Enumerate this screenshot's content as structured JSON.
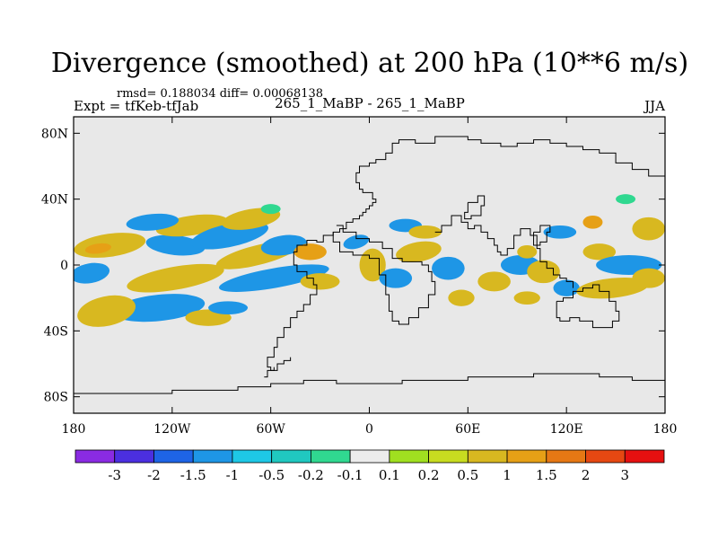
{
  "title": "Divergence (smoothed) at 200 hPa (10**6 m/s)",
  "stats": "rmsd= 0.188034  diff= 0.00068138",
  "experiment": "Expt = tfKeb-tfJab",
  "case_label": "265_1_MaBP - 265_1_MaBP",
  "season": "JJA",
  "map": {
    "projection": "cylindrical-equidistant",
    "lon_range": [
      -180,
      180
    ],
    "lat_range": [
      -90,
      90
    ],
    "x_ticks": [
      {
        "lon": -180,
        "label": "180"
      },
      {
        "lon": -120,
        "label": "120W"
      },
      {
        "lon": -60,
        "label": "60W"
      },
      {
        "lon": 0,
        "label": "0"
      },
      {
        "lon": 60,
        "label": "60E"
      },
      {
        "lon": 120,
        "label": "120E"
      },
      {
        "lon": 180,
        "label": "180"
      }
    ],
    "y_ticks": [
      {
        "lat": 80,
        "label": "80N"
      },
      {
        "lat": 40,
        "label": "40N"
      },
      {
        "lat": 0,
        "label": "0"
      },
      {
        "lat": -40,
        "label": "40S"
      },
      {
        "lat": -80,
        "label": "80S"
      }
    ],
    "background_color": "#e8e8e8"
  },
  "colorbar": {
    "colors": [
      "#8a2be2",
      "#4b2fe0",
      "#1e64e6",
      "#1e96e6",
      "#1ec8e6",
      "#20c8c0",
      "#30d890",
      "#ececec",
      "#a0e020",
      "#c8dc20",
      "#d8b820",
      "#e6a016",
      "#e67814",
      "#e64812",
      "#e61010"
    ],
    "labels": [
      "-3",
      "-2",
      "-1.5",
      "-1",
      "-0.5",
      "-0.2",
      "-0.1",
      "0.1",
      "0.2",
      "0.5",
      "1",
      "1.5",
      "2",
      "3"
    ]
  },
  "features": [
    {
      "lon": -158,
      "lat": 12,
      "rx": 22,
      "ry": 7,
      "level": 10,
      "angle": -8
    },
    {
      "lon": -165,
      "lat": 10,
      "rx": 8,
      "ry": 3,
      "level": 11,
      "angle": -8
    },
    {
      "lon": -118,
      "lat": 12,
      "rx": 18,
      "ry": 6,
      "level": 3,
      "angle": 6
    },
    {
      "lon": -108,
      "lat": 24,
      "rx": 22,
      "ry": 6,
      "level": 10,
      "angle": -8
    },
    {
      "lon": -132,
      "lat": 26,
      "rx": 16,
      "ry": 5,
      "level": 3,
      "angle": -5
    },
    {
      "lon": -85,
      "lat": 18,
      "rx": 24,
      "ry": 7,
      "level": 3,
      "angle": -12
    },
    {
      "lon": -72,
      "lat": 28,
      "rx": 18,
      "ry": 6,
      "level": 10,
      "angle": -10
    },
    {
      "lon": -68,
      "lat": 6,
      "rx": 26,
      "ry": 6,
      "level": 10,
      "angle": -14
    },
    {
      "lon": -52,
      "lat": 12,
      "rx": 14,
      "ry": 6,
      "level": 3,
      "angle": -8
    },
    {
      "lon": -58,
      "lat": -8,
      "rx": 34,
      "ry": 6,
      "level": 3,
      "angle": -10
    },
    {
      "lon": -118,
      "lat": -8,
      "rx": 30,
      "ry": 7,
      "level": 10,
      "angle": -10
    },
    {
      "lon": -128,
      "lat": -26,
      "rx": 28,
      "ry": 8,
      "level": 3,
      "angle": -6
    },
    {
      "lon": -160,
      "lat": -28,
      "rx": 18,
      "ry": 9,
      "level": 10,
      "angle": -12
    },
    {
      "lon": -170,
      "lat": -5,
      "rx": 12,
      "ry": 6,
      "level": 3,
      "angle": -10
    },
    {
      "lon": -98,
      "lat": -32,
      "rx": 14,
      "ry": 5,
      "level": 10,
      "angle": 0
    },
    {
      "lon": -86,
      "lat": -26,
      "rx": 12,
      "ry": 4,
      "level": 3,
      "angle": 0
    },
    {
      "lon": -36,
      "lat": 8,
      "rx": 10,
      "ry": 5,
      "level": 11,
      "angle": 0
    },
    {
      "lon": -30,
      "lat": -10,
      "rx": 12,
      "ry": 5,
      "level": 10,
      "angle": 0
    },
    {
      "lon": -8,
      "lat": 14,
      "rx": 8,
      "ry": 4,
      "level": 3,
      "angle": -15
    },
    {
      "lon": 2,
      "lat": 0,
      "rx": 8,
      "ry": 10,
      "level": 10,
      "angle": 0
    },
    {
      "lon": 16,
      "lat": -8,
      "rx": 10,
      "ry": 6,
      "level": 3,
      "angle": 0
    },
    {
      "lon": 22,
      "lat": 24,
      "rx": 10,
      "ry": 4,
      "level": 3,
      "angle": 0
    },
    {
      "lon": 30,
      "lat": 8,
      "rx": 14,
      "ry": 6,
      "level": 10,
      "angle": -10
    },
    {
      "lon": 34,
      "lat": 20,
      "rx": 10,
      "ry": 4,
      "level": 10,
      "angle": 0
    },
    {
      "lon": 48,
      "lat": -2,
      "rx": 10,
      "ry": 7,
      "level": 3,
      "angle": 0
    },
    {
      "lon": 56,
      "lat": -20,
      "rx": 8,
      "ry": 5,
      "level": 10,
      "angle": 0
    },
    {
      "lon": 76,
      "lat": -10,
      "rx": 10,
      "ry": 6,
      "level": 10,
      "angle": 0
    },
    {
      "lon": 92,
      "lat": 0,
      "rx": 12,
      "ry": 6,
      "level": 3,
      "angle": 0
    },
    {
      "lon": 106,
      "lat": -4,
      "rx": 10,
      "ry": 7,
      "level": 10,
      "angle": 0
    },
    {
      "lon": 96,
      "lat": -20,
      "rx": 8,
      "ry": 4,
      "level": 10,
      "angle": 0
    },
    {
      "lon": 120,
      "lat": -14,
      "rx": 8,
      "ry": 5,
      "level": 3,
      "angle": 0
    },
    {
      "lon": 140,
      "lat": 8,
      "rx": 10,
      "ry": 5,
      "level": 10,
      "angle": 0
    },
    {
      "lon": 158,
      "lat": 0,
      "rx": 20,
      "ry": 6,
      "level": 3,
      "angle": 0
    },
    {
      "lon": 148,
      "lat": -14,
      "rx": 22,
      "ry": 6,
      "level": 10,
      "angle": -6
    },
    {
      "lon": 170,
      "lat": 22,
      "rx": 10,
      "ry": 7,
      "level": 10,
      "angle": 0
    },
    {
      "lon": 136,
      "lat": 26,
      "rx": 6,
      "ry": 4,
      "level": 11,
      "angle": 0
    },
    {
      "lon": 116,
      "lat": 20,
      "rx": 10,
      "ry": 4,
      "level": 3,
      "angle": 0
    },
    {
      "lon": 170,
      "lat": -8,
      "rx": 10,
      "ry": 6,
      "level": 10,
      "angle": 0
    },
    {
      "lon": 156,
      "lat": 40,
      "rx": 6,
      "ry": 3,
      "level": 6,
      "angle": 0
    },
    {
      "lon": -60,
      "lat": 34,
      "rx": 6,
      "ry": 3,
      "level": 6,
      "angle": 0
    },
    {
      "lon": 96,
      "lat": 8,
      "rx": 6,
      "ry": 4,
      "level": 10,
      "angle": 0
    }
  ],
  "land_outlines": [
    [
      [
        -40,
        12
      ],
      [
        -38,
        15
      ],
      [
        -32,
        14
      ],
      [
        -28,
        18
      ],
      [
        -22,
        20
      ],
      [
        -18,
        22
      ],
      [
        -14,
        26
      ],
      [
        -10,
        28
      ],
      [
        -6,
        30
      ],
      [
        -4,
        32
      ],
      [
        -2,
        34
      ],
      [
        0,
        36
      ],
      [
        2,
        38
      ],
      [
        4,
        40
      ],
      [
        2,
        44
      ],
      [
        -4,
        46
      ],
      [
        -6,
        50
      ],
      [
        -8,
        56
      ],
      [
        -6,
        60
      ],
      [
        0,
        62
      ],
      [
        4,
        64
      ],
      [
        10,
        68
      ],
      [
        14,
        74
      ],
      [
        18,
        76
      ],
      [
        28,
        74
      ],
      [
        40,
        78
      ],
      [
        54,
        78
      ],
      [
        60,
        76
      ],
      [
        68,
        74
      ],
      [
        80,
        72
      ],
      [
        90,
        74
      ],
      [
        100,
        76
      ],
      [
        110,
        74
      ],
      [
        120,
        72
      ],
      [
        130,
        70
      ],
      [
        140,
        68
      ],
      [
        150,
        62
      ],
      [
        160,
        58
      ],
      [
        170,
        54
      ],
      [
        180,
        52
      ]
    ],
    [
      [
        -40,
        12
      ],
      [
        -44,
        8
      ],
      [
        -46,
        4
      ],
      [
        -46,
        0
      ],
      [
        -44,
        -4
      ],
      [
        -38,
        -8
      ],
      [
        -34,
        -12
      ],
      [
        -32,
        -18
      ],
      [
        -36,
        -24
      ],
      [
        -40,
        -28
      ],
      [
        -44,
        -32
      ],
      [
        -48,
        -38
      ],
      [
        -52,
        -44
      ],
      [
        -56,
        -50
      ],
      [
        -58,
        -56
      ],
      [
        -62,
        -62
      ],
      [
        -60,
        -64
      ],
      [
        -56,
        -60
      ],
      [
        -52,
        -58
      ],
      [
        -48,
        -56
      ]
    ],
    [
      [
        -20,
        24
      ],
      [
        -16,
        20
      ],
      [
        -8,
        16
      ],
      [
        0,
        14
      ],
      [
        8,
        10
      ],
      [
        14,
        4
      ],
      [
        20,
        2
      ],
      [
        28,
        2
      ],
      [
        32,
        0
      ],
      [
        36,
        -4
      ],
      [
        38,
        -10
      ],
      [
        40,
        -18
      ],
      [
        36,
        -26
      ],
      [
        30,
        -32
      ],
      [
        24,
        -36
      ],
      [
        18,
        -34
      ],
      [
        14,
        -28
      ],
      [
        12,
        -18
      ],
      [
        10,
        -6
      ],
      [
        6,
        4
      ],
      [
        0,
        6
      ],
      [
        -10,
        8
      ],
      [
        -18,
        14
      ],
      [
        -22,
        20
      ]
    ],
    [
      [
        40,
        20
      ],
      [
        44,
        24
      ],
      [
        50,
        30
      ],
      [
        56,
        26
      ],
      [
        60,
        22
      ],
      [
        64,
        24
      ],
      [
        68,
        20
      ],
      [
        72,
        16
      ],
      [
        76,
        12
      ],
      [
        78,
        8
      ],
      [
        80,
        6
      ],
      [
        84,
        10
      ],
      [
        88,
        18
      ],
      [
        92,
        22
      ],
      [
        98,
        18
      ],
      [
        102,
        10
      ],
      [
        104,
        2
      ],
      [
        108,
        -2
      ],
      [
        112,
        -6
      ],
      [
        116,
        -8
      ],
      [
        120,
        -10
      ],
      [
        124,
        -14
      ]
    ],
    [
      [
        114,
        -22
      ],
      [
        118,
        -20
      ],
      [
        124,
        -16
      ],
      [
        130,
        -14
      ],
      [
        136,
        -12
      ],
      [
        140,
        -16
      ],
      [
        146,
        -22
      ],
      [
        150,
        -28
      ],
      [
        152,
        -34
      ],
      [
        148,
        -38
      ],
      [
        142,
        -38
      ],
      [
        136,
        -34
      ],
      [
        128,
        -32
      ],
      [
        122,
        -34
      ],
      [
        116,
        -32
      ],
      [
        114,
        -26
      ],
      [
        114,
        -22
      ]
    ],
    [
      [
        -180,
        -78
      ],
      [
        -120,
        -76
      ],
      [
        -80,
        -74
      ],
      [
        -60,
        -72
      ],
      [
        -40,
        -70
      ],
      [
        -20,
        -72
      ],
      [
        0,
        -72
      ],
      [
        20,
        -70
      ],
      [
        40,
        -70
      ],
      [
        60,
        -68
      ],
      [
        80,
        -68
      ],
      [
        100,
        -66
      ],
      [
        120,
        -66
      ],
      [
        140,
        -68
      ],
      [
        160,
        -70
      ],
      [
        180,
        -76
      ]
    ],
    [
      [
        -64,
        -68
      ],
      [
        -62,
        -64
      ],
      [
        -58,
        -62
      ]
    ],
    [
      [
        60,
        38
      ],
      [
        66,
        42
      ],
      [
        70,
        36
      ],
      [
        68,
        30
      ],
      [
        62,
        28
      ],
      [
        58,
        32
      ],
      [
        60,
        38
      ]
    ],
    [
      [
        100,
        20
      ],
      [
        104,
        24
      ],
      [
        110,
        20
      ],
      [
        108,
        14
      ],
      [
        104,
        12
      ],
      [
        100,
        16
      ],
      [
        100,
        20
      ]
    ]
  ]
}
